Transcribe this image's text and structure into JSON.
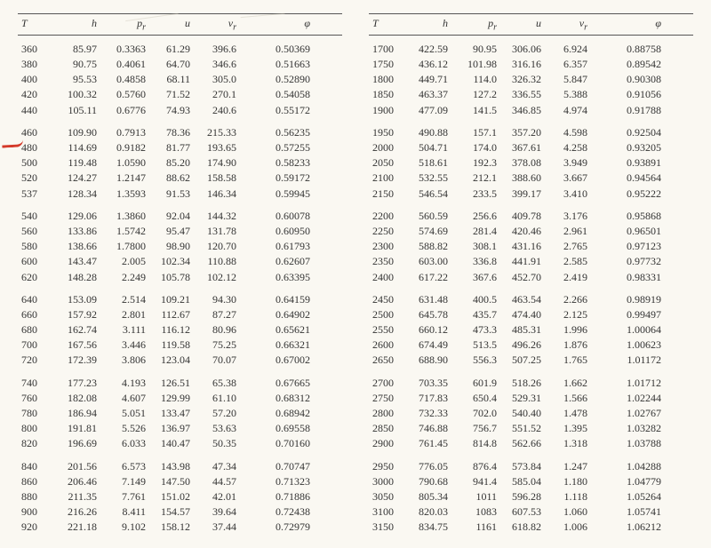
{
  "headers": [
    "T",
    "h",
    "p_r",
    "u",
    "v_r",
    "φ"
  ],
  "left": [
    [
      [
        "360",
        "85.97",
        "0.3363",
        "61.29",
        "396.6",
        "0.50369"
      ],
      [
        "380",
        "90.75",
        "0.4061",
        "64.70",
        "346.6",
        "0.51663"
      ],
      [
        "400",
        "95.53",
        "0.4858",
        "68.11",
        "305.0",
        "0.52890"
      ],
      [
        "420",
        "100.32",
        "0.5760",
        "71.52",
        "270.1",
        "0.54058"
      ],
      [
        "440",
        "105.11",
        "0.6776",
        "74.93",
        "240.6",
        "0.55172"
      ]
    ],
    [
      [
        "460",
        "109.90",
        "0.7913",
        "78.36",
        "215.33",
        "0.56235"
      ],
      [
        "480",
        "114.69",
        "0.9182",
        "81.77",
        "193.65",
        "0.57255"
      ],
      [
        "500",
        "119.48",
        "1.0590",
        "85.20",
        "174.90",
        "0.58233"
      ],
      [
        "520",
        "124.27",
        "1.2147",
        "88.62",
        "158.58",
        "0.59172"
      ],
      [
        "537",
        "128.34",
        "1.3593",
        "91.53",
        "146.34",
        "0.59945"
      ]
    ],
    [
      [
        "540",
        "129.06",
        "1.3860",
        "92.04",
        "144.32",
        "0.60078"
      ],
      [
        "560",
        "133.86",
        "1.5742",
        "95.47",
        "131.78",
        "0.60950"
      ],
      [
        "580",
        "138.66",
        "1.7800",
        "98.90",
        "120.70",
        "0.61793"
      ],
      [
        "600",
        "143.47",
        "2.005",
        "102.34",
        "110.88",
        "0.62607"
      ],
      [
        "620",
        "148.28",
        "2.249",
        "105.78",
        "102.12",
        "0.63395"
      ]
    ],
    [
      [
        "640",
        "153.09",
        "2.514",
        "109.21",
        "94.30",
        "0.64159"
      ],
      [
        "660",
        "157.92",
        "2.801",
        "112.67",
        "87.27",
        "0.64902"
      ],
      [
        "680",
        "162.74",
        "3.111",
        "116.12",
        "80.96",
        "0.65621"
      ],
      [
        "700",
        "167.56",
        "3.446",
        "119.58",
        "75.25",
        "0.66321"
      ],
      [
        "720",
        "172.39",
        "3.806",
        "123.04",
        "70.07",
        "0.67002"
      ]
    ],
    [
      [
        "740",
        "177.23",
        "4.193",
        "126.51",
        "65.38",
        "0.67665"
      ],
      [
        "760",
        "182.08",
        "4.607",
        "129.99",
        "61.10",
        "0.68312"
      ],
      [
        "780",
        "186.94",
        "5.051",
        "133.47",
        "57.20",
        "0.68942"
      ],
      [
        "800",
        "191.81",
        "5.526",
        "136.97",
        "53.63",
        "0.69558"
      ],
      [
        "820",
        "196.69",
        "6.033",
        "140.47",
        "50.35",
        "0.70160"
      ]
    ],
    [
      [
        "840",
        "201.56",
        "6.573",
        "143.98",
        "47.34",
        "0.70747"
      ],
      [
        "860",
        "206.46",
        "7.149",
        "147.50",
        "44.57",
        "0.71323"
      ],
      [
        "880",
        "211.35",
        "7.761",
        "151.02",
        "42.01",
        "0.71886"
      ],
      [
        "900",
        "216.26",
        "8.411",
        "154.57",
        "39.64",
        "0.72438"
      ],
      [
        "920",
        "221.18",
        "9.102",
        "158.12",
        "37.44",
        "0.72979"
      ]
    ]
  ],
  "right": [
    [
      [
        "1700",
        "422.59",
        "90.95",
        "306.06",
        "6.924",
        "0.88758"
      ],
      [
        "1750",
        "436.12",
        "101.98",
        "316.16",
        "6.357",
        "0.89542"
      ],
      [
        "1800",
        "449.71",
        "114.0",
        "326.32",
        "5.847",
        "0.90308"
      ],
      [
        "1850",
        "463.37",
        "127.2",
        "336.55",
        "5.388",
        "0.91056"
      ],
      [
        "1900",
        "477.09",
        "141.5",
        "346.85",
        "4.974",
        "0.91788"
      ]
    ],
    [
      [
        "1950",
        "490.88",
        "157.1",
        "357.20",
        "4.598",
        "0.92504"
      ],
      [
        "2000",
        "504.71",
        "174.0",
        "367.61",
        "4.258",
        "0.93205"
      ],
      [
        "2050",
        "518.61",
        "192.3",
        "378.08",
        "3.949",
        "0.93891"
      ],
      [
        "2100",
        "532.55",
        "212.1",
        "388.60",
        "3.667",
        "0.94564"
      ],
      [
        "2150",
        "546.54",
        "233.5",
        "399.17",
        "3.410",
        "0.95222"
      ]
    ],
    [
      [
        "2200",
        "560.59",
        "256.6",
        "409.78",
        "3.176",
        "0.95868"
      ],
      [
        "2250",
        "574.69",
        "281.4",
        "420.46",
        "2.961",
        "0.96501"
      ],
      [
        "2300",
        "588.82",
        "308.1",
        "431.16",
        "2.765",
        "0.97123"
      ],
      [
        "2350",
        "603.00",
        "336.8",
        "441.91",
        "2.585",
        "0.97732"
      ],
      [
        "2400",
        "617.22",
        "367.6",
        "452.70",
        "2.419",
        "0.98331"
      ]
    ],
    [
      [
        "2450",
        "631.48",
        "400.5",
        "463.54",
        "2.266",
        "0.98919"
      ],
      [
        "2500",
        "645.78",
        "435.7",
        "474.40",
        "2.125",
        "0.99497"
      ],
      [
        "2550",
        "660.12",
        "473.3",
        "485.31",
        "1.996",
        "1.00064"
      ],
      [
        "2600",
        "674.49",
        "513.5",
        "496.26",
        "1.876",
        "1.00623"
      ],
      [
        "2650",
        "688.90",
        "556.3",
        "507.25",
        "1.765",
        "1.01172"
      ]
    ],
    [
      [
        "2700",
        "703.35",
        "601.9",
        "518.26",
        "1.662",
        "1.01712"
      ],
      [
        "2750",
        "717.83",
        "650.4",
        "529.31",
        "1.566",
        "1.02244"
      ],
      [
        "2800",
        "732.33",
        "702.0",
        "540.40",
        "1.478",
        "1.02767"
      ],
      [
        "2850",
        "746.88",
        "756.7",
        "551.52",
        "1.395",
        "1.03282"
      ],
      [
        "2900",
        "761.45",
        "814.8",
        "562.66",
        "1.318",
        "1.03788"
      ]
    ],
    [
      [
        "2950",
        "776.05",
        "876.4",
        "573.84",
        "1.247",
        "1.04288"
      ],
      [
        "3000",
        "790.68",
        "941.4",
        "585.04",
        "1.180",
        "1.04779"
      ],
      [
        "3050",
        "805.34",
        "1011",
        "596.28",
        "1.118",
        "1.05264"
      ],
      [
        "3100",
        "820.03",
        "1083",
        "607.53",
        "1.060",
        "1.05741"
      ],
      [
        "3150",
        "834.75",
        "1161",
        "618.82",
        "1.006",
        "1.06212"
      ]
    ]
  ]
}
